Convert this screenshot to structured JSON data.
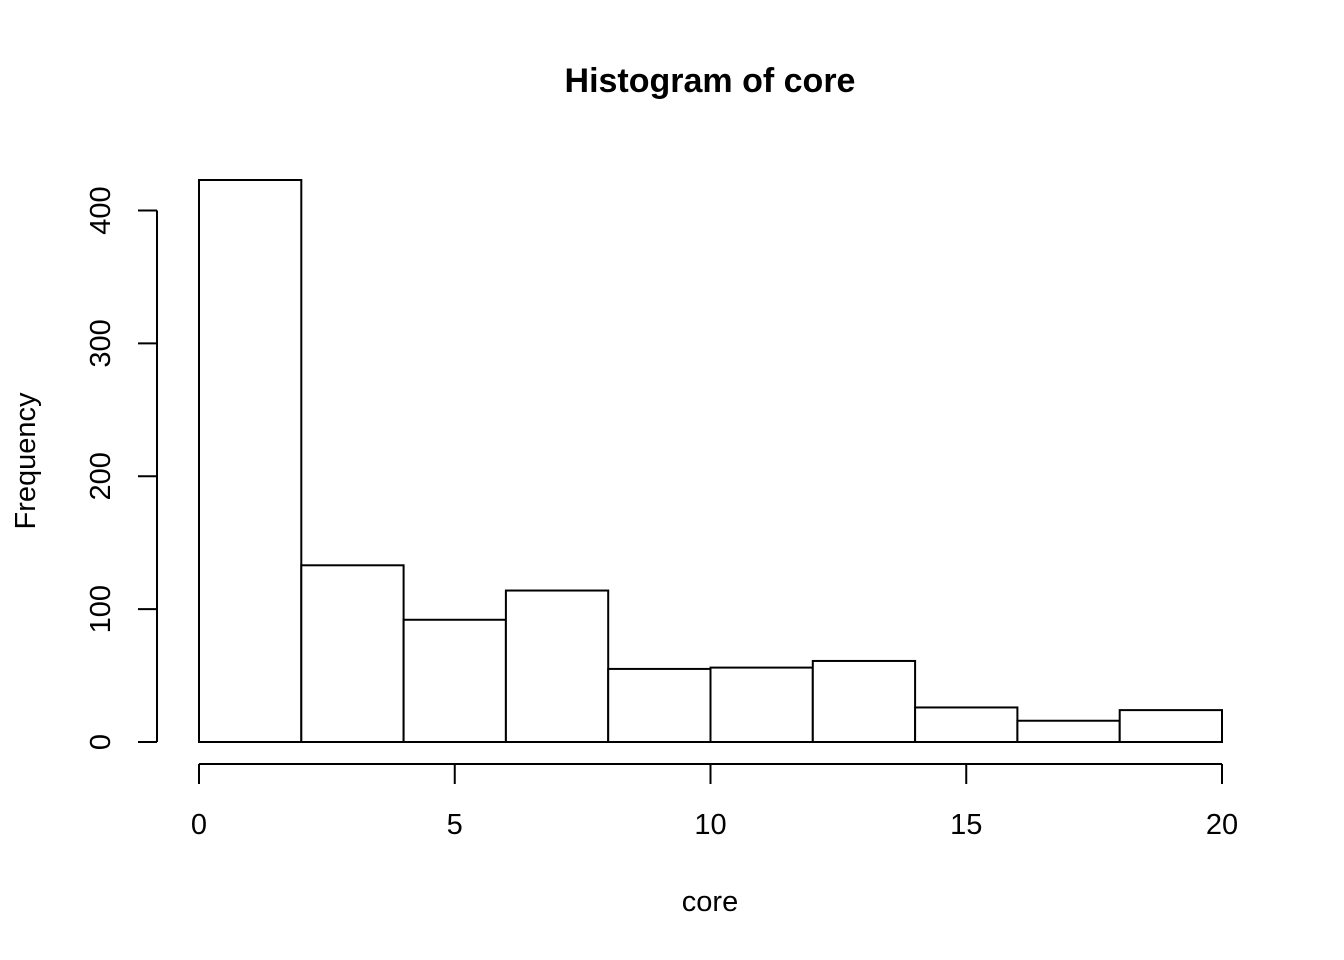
{
  "chart_data": {
    "type": "bar",
    "title": "Histogram of core",
    "xlabel": "core",
    "ylabel": "Frequency",
    "bins": [
      {
        "start": 0,
        "end": 2,
        "count": 423
      },
      {
        "start": 2,
        "end": 4,
        "count": 133
      },
      {
        "start": 4,
        "end": 6,
        "count": 92
      },
      {
        "start": 6,
        "end": 8,
        "count": 114
      },
      {
        "start": 8,
        "end": 10,
        "count": 55
      },
      {
        "start": 10,
        "end": 12,
        "count": 56
      },
      {
        "start": 12,
        "end": 14,
        "count": 61
      },
      {
        "start": 14,
        "end": 16,
        "count": 26
      },
      {
        "start": 16,
        "end": 18,
        "count": 16
      },
      {
        "start": 18,
        "end": 20,
        "count": 24
      }
    ],
    "xlim": [
      0,
      20
    ],
    "ylim": [
      0,
      423
    ],
    "x_ticks": [
      0,
      5,
      10,
      15,
      20
    ],
    "y_ticks": [
      0,
      100,
      200,
      300,
      400
    ],
    "grid": false,
    "colors": {
      "bar_fill": "#ffffff",
      "bar_stroke": "#000000"
    }
  }
}
